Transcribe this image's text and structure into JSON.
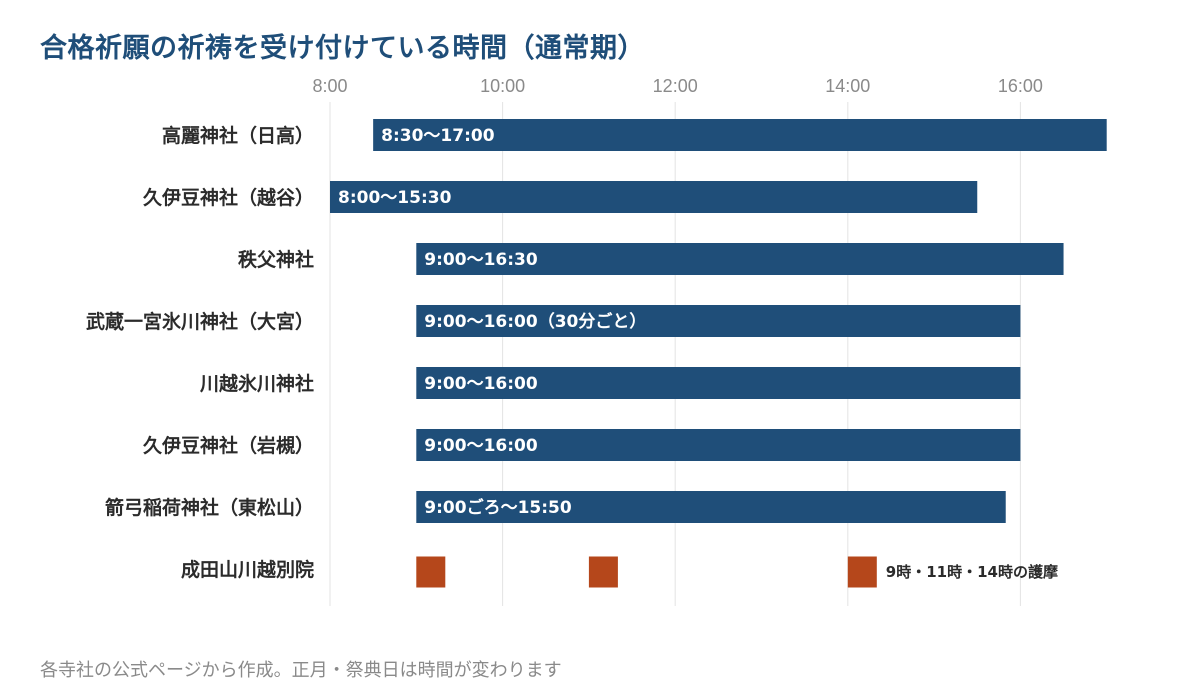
{
  "title": "合格祈願の祈祷を受け付けている時間（通常期）",
  "footnote": "各寺社の公式ページから作成。正月・祭典日は時間が変わります",
  "colors": {
    "title": "#1f4e79",
    "bar": "#1f4e79",
    "marker": "#b5471b",
    "grid": "#e3e3e3"
  },
  "chart_data": {
    "type": "bar",
    "orientation": "horizontal-range",
    "x_unit": "hour",
    "xlim": [
      8,
      17.1
    ],
    "ticks": [
      8,
      10,
      12,
      14,
      16
    ],
    "tick_labels": [
      "8:00",
      "10:00",
      "12:00",
      "14:00",
      "16:00"
    ],
    "grid": true,
    "categories": [
      "高麗神社（日高）",
      "久伊豆神社（越谷）",
      "秩父神社",
      "武蔵一宮氷川神社（大宮）",
      "川越氷川神社",
      "久伊豆神社（岩槻）",
      "箭弓稲荷神社（東松山）",
      "成田山川越別院"
    ],
    "ranges": [
      {
        "start": 8.5,
        "end": 17.0,
        "label": "8:30〜17:00"
      },
      {
        "start": 8.0,
        "end": 15.5,
        "label": "8:00〜15:30"
      },
      {
        "start": 9.0,
        "end": 16.5,
        "label": "9:00〜16:30"
      },
      {
        "start": 9.0,
        "end": 16.0,
        "label": "9:00〜16:00（30分ごと）"
      },
      {
        "start": 9.0,
        "end": 16.0,
        "label": "9:00〜16:00"
      },
      {
        "start": 9.0,
        "end": 16.0,
        "label": "9:00〜16:00"
      },
      {
        "start": 9.0,
        "end": 15.83,
        "label": "9:00ごろ〜15:50"
      },
      null
    ],
    "markers": {
      "category": "成田山川越別院",
      "times": [
        9,
        11,
        14
      ],
      "label": "9時・11時・14時の護摩"
    }
  }
}
